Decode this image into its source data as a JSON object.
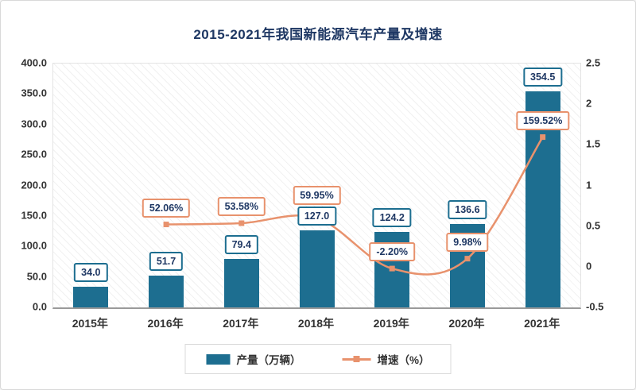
{
  "chart_data": {
    "type": "combo_bar_line",
    "title": "2015-2021年我国新能源汽车产量及增速",
    "title_color": "#1f3864",
    "label_text_color": "#1f3864",
    "categories": [
      "2015年",
      "2016年",
      "2017年",
      "2018年",
      "2019年",
      "2020年",
      "2021年"
    ],
    "series": [
      {
        "name": "产量（万辆）",
        "type": "bar",
        "axis": "left",
        "color": "#1d6e90",
        "values": [
          34.0,
          51.7,
          79.4,
          127.0,
          124.2,
          136.6,
          354.5
        ],
        "labels": [
          "34.0",
          "51.7",
          "79.4",
          "127.0",
          "124.2",
          "136.6",
          "354.5"
        ]
      },
      {
        "name": "增速（%）",
        "type": "line",
        "axis": "right",
        "color": "#e8926d",
        "values": [
          null,
          52.06,
          53.58,
          59.95,
          -2.2,
          9.98,
          159.52
        ],
        "labels": [
          null,
          "52.06%",
          "53.58%",
          "59.95%",
          "-2.20%",
          "9.98%",
          "159.52%"
        ]
      }
    ],
    "left_axis": {
      "min": 0,
      "max": 400,
      "tick_labels": [
        "400.0",
        "350.0",
        "300.0",
        "250.0",
        "200.0",
        "150.0",
        "100.0",
        "50.0",
        "0.0"
      ]
    },
    "right_axis": {
      "min": -0.5,
      "max": 2.5,
      "tick_labels": [
        "2.5",
        "2",
        "1.5",
        "1",
        "0.5",
        "0",
        "-0.5"
      ]
    },
    "legend": [
      {
        "label": "产量（万辆）",
        "swatch": "bar",
        "color": "#1d6e90"
      },
      {
        "label": "增速（%）",
        "swatch": "line",
        "color": "#e8926d"
      }
    ],
    "grid": "diagonal-hatch",
    "legend_position": "bottom"
  }
}
